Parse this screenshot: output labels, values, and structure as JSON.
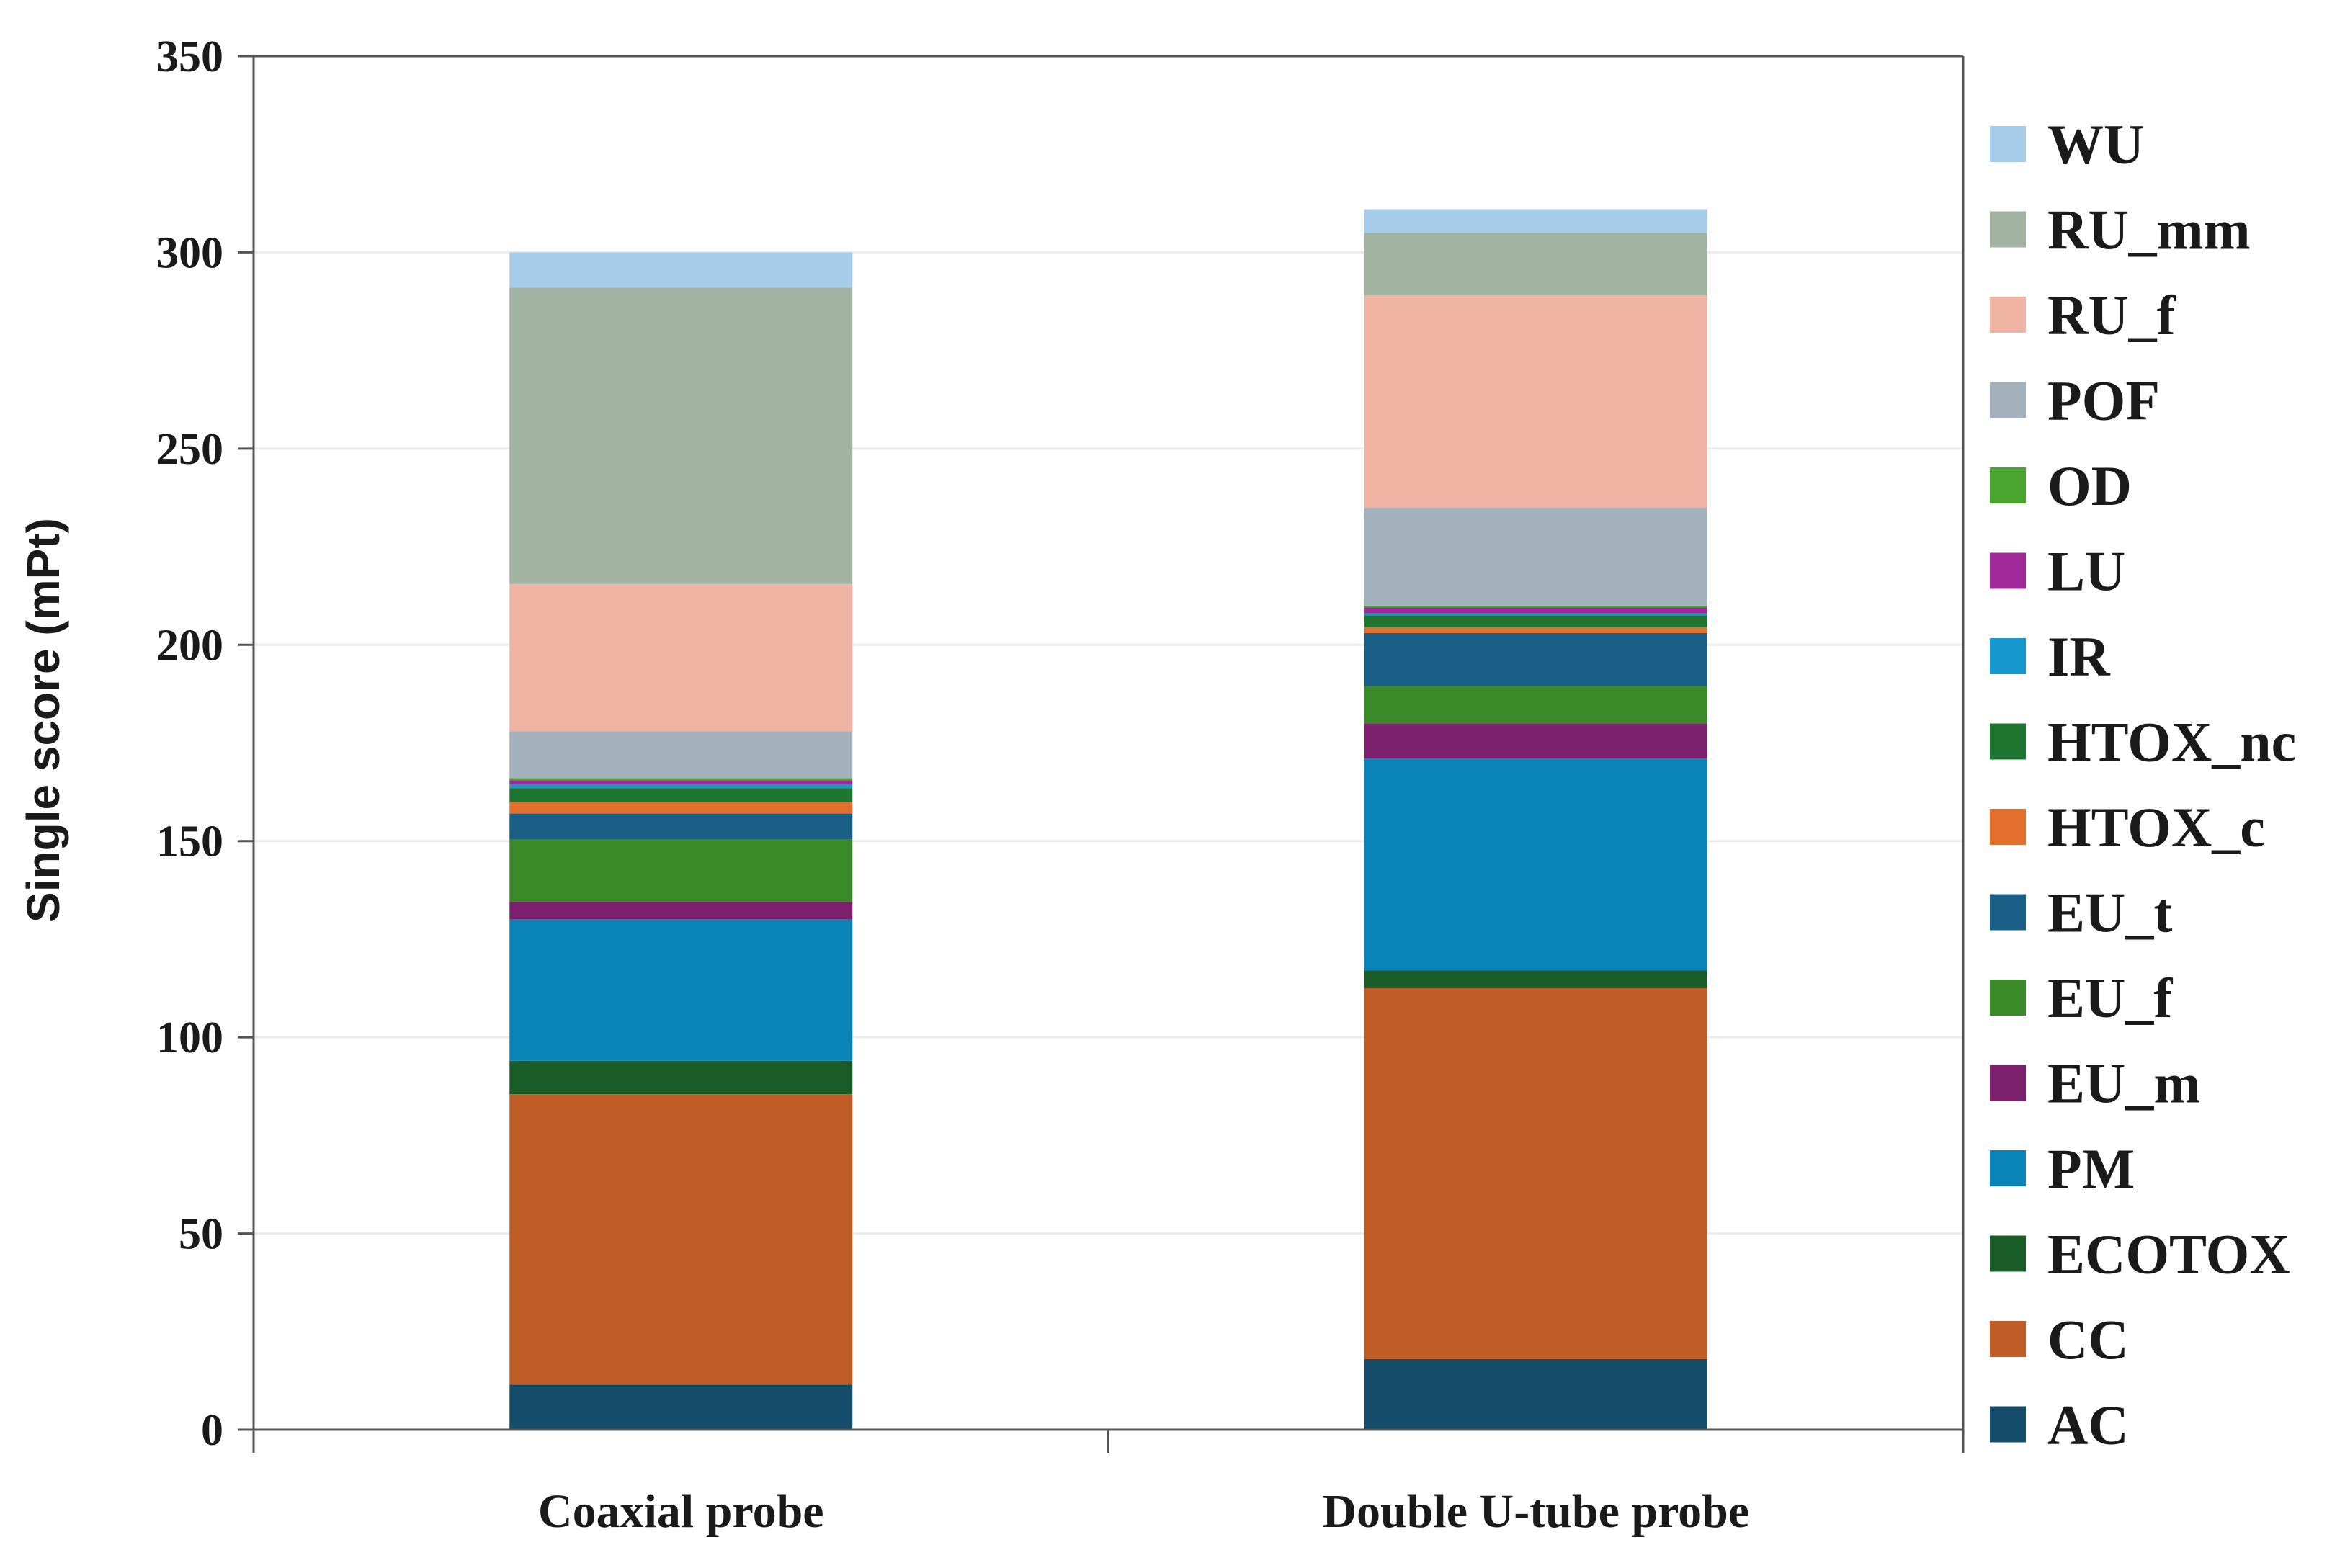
{
  "chart_data": {
    "type": "bar",
    "stacked": true,
    "ylabel": "Single score (mPt)",
    "xlabel": "",
    "ylim": [
      0,
      350
    ],
    "yticks": [
      0,
      50,
      100,
      150,
      200,
      250,
      300,
      350
    ],
    "grid": true,
    "legend_position": "right",
    "categories": [
      "Coaxial probe",
      "Double U-tube probe"
    ],
    "series": [
      {
        "name": "AC",
        "color": "#154d6b",
        "values": [
          11.5,
          18
        ]
      },
      {
        "name": "CC",
        "color": "#c05d27",
        "values": [
          74,
          94.5
        ]
      },
      {
        "name": "ECOTOX",
        "color": "#1a5c27",
        "values": [
          8.5,
          4.5
        ]
      },
      {
        "name": "PM",
        "color": "#0a84b8",
        "values": [
          36,
          54
        ]
      },
      {
        "name": "EU_m",
        "color": "#7d216e",
        "values": [
          4.5,
          9
        ]
      },
      {
        "name": "EU_f",
        "color": "#3a8a2a",
        "values": [
          16,
          9.5
        ]
      },
      {
        "name": "EU_t",
        "color": "#1a5f85",
        "values": [
          6.5,
          13.5
        ]
      },
      {
        "name": "HTOX_c",
        "color": "#e36f2c",
        "values": [
          3,
          1.5
        ]
      },
      {
        "name": "HTOX_nc",
        "color": "#1e7530",
        "values": [
          3.5,
          3
        ]
      },
      {
        "name": "IR",
        "color": "#1799d0",
        "values": [
          1,
          0.5
        ]
      },
      {
        "name": "LU",
        "color": "#a02a98",
        "values": [
          1,
          1.5
        ]
      },
      {
        "name": "OD",
        "color": "#4aa52e",
        "values": [
          0.5,
          0.5
        ]
      },
      {
        "name": "POF",
        "color": "#a2b1bc",
        "values": [
          12,
          25
        ]
      },
      {
        "name": "RU_f",
        "color": "#f0b4a4",
        "values": [
          37.5,
          54
        ]
      },
      {
        "name": "RU_mm",
        "color": "#a2b3a2",
        "values": [
          75.5,
          16
        ]
      },
      {
        "name": "WU",
        "color": "#a7cce9",
        "values": [
          9,
          6
        ]
      }
    ]
  }
}
